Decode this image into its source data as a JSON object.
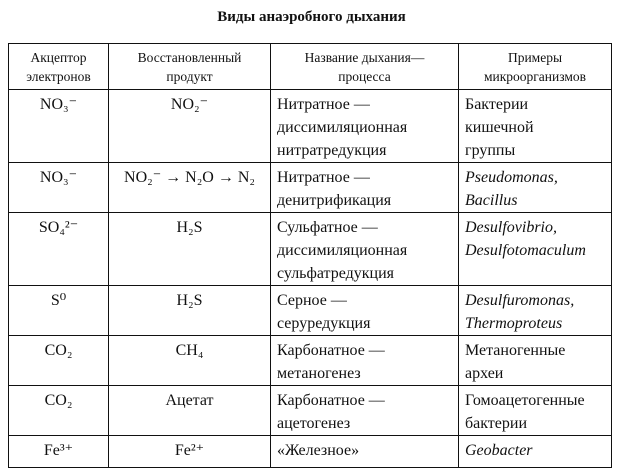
{
  "title": "Виды анаэробного дыхания",
  "headers": [
    "Акцептор\nэлектронов",
    "Восстановленный\nпродукт",
    "Название дыхания—\nпроцесса",
    "Примеры\nмикроорганизмов"
  ],
  "rows": [
    {
      "acceptor": "NO₃⁻",
      "product": "NO₂⁻",
      "name": "Нитратное —\nдиссимиляционная\nнитратредукция",
      "examples": "Бактерии\nкишечной\nгруппы",
      "italic": false
    },
    {
      "acceptor": "NO₃⁻",
      "product": "NO₂⁻ → N₂O → N₂",
      "name": "Нитратное —\nденитрификация",
      "examples": "Pseudomonas,\nBacillus",
      "italic": true
    },
    {
      "acceptor": "SO₄²⁻",
      "product": "H₂S",
      "name": "Сульфатное —\nдиссимиляционная\nсульфатредукция",
      "examples": "Desulfovibrio,\nDesulfotomaculum",
      "italic": true
    },
    {
      "acceptor": "S⁰",
      "product": "H₂S",
      "name": "Серное —\nсеруредукция",
      "examples": "Desulfuromonas,\nThermoproteus",
      "italic": true
    },
    {
      "acceptor": "CO₂",
      "product": "CH₄",
      "name": "Карбонатное —\nметаногенез",
      "examples": "Метаногенные\nархеи",
      "italic": false
    },
    {
      "acceptor": "CO₂",
      "product": "Ацетат",
      "name": "Карбонатное —\nацетогенез",
      "examples": "Гомоацетогенные\nбактерии",
      "italic": false
    },
    {
      "acceptor": "Fe³⁺",
      "product": "Fe²⁺",
      "name": "«Железное»",
      "examples": "Geobacter",
      "italic": true
    }
  ]
}
